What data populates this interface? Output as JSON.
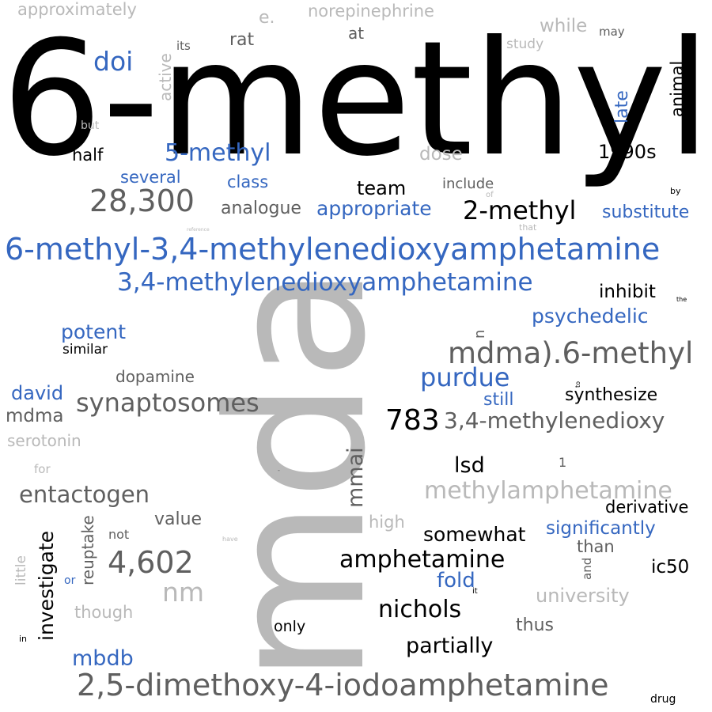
{
  "words": [
    {
      "id": "w1",
      "text": "6-methyl",
      "tone": "black"
    },
    {
      "id": "w2",
      "text": "mda",
      "tone": "light"
    },
    {
      "id": "w3",
      "text": "6-methyl-3,4-methylenedioxyamphetamine",
      "tone": "blue"
    },
    {
      "id": "w4",
      "text": "3,4-methylenedioxyamphetamine",
      "tone": "blue"
    },
    {
      "id": "w5",
      "text": "2,5-dimethoxy-4-iodoamphetamine",
      "tone": "gray"
    },
    {
      "id": "w6",
      "text": "mdma).6-methyl",
      "tone": "gray"
    },
    {
      "id": "w7",
      "text": "methylamphetamine",
      "tone": "light"
    },
    {
      "id": "w8",
      "text": "3,4-methylenedioxy",
      "tone": "gray"
    },
    {
      "id": "w9",
      "text": "synaptosomes",
      "tone": "gray"
    },
    {
      "id": "w10",
      "text": "28,300",
      "tone": "gray"
    },
    {
      "id": "w11",
      "text": "4,602",
      "tone": "gray"
    },
    {
      "id": "w12",
      "text": "2-methyl",
      "tone": "black"
    },
    {
      "id": "w13",
      "text": "5-methyl",
      "tone": "blue"
    },
    {
      "id": "w14",
      "text": "783",
      "tone": "black"
    },
    {
      "id": "w15",
      "text": "purdue",
      "tone": "blue"
    },
    {
      "id": "w16",
      "text": "entactogen",
      "tone": "gray"
    },
    {
      "id": "w17",
      "text": "doi",
      "tone": "blue"
    },
    {
      "id": "w18",
      "text": "nichols",
      "tone": "black"
    },
    {
      "id": "w19",
      "text": "amphetamine",
      "tone": "black"
    },
    {
      "id": "w20",
      "text": "nm",
      "tone": "light"
    },
    {
      "id": "w21",
      "text": "mmai",
      "tone": "gray"
    },
    {
      "id": "w22",
      "text": "lsd",
      "tone": "black"
    },
    {
      "id": "w23",
      "text": "mbdb",
      "tone": "blue"
    },
    {
      "id": "w24",
      "text": "partially",
      "tone": "black"
    },
    {
      "id": "w25",
      "text": "psychedelic",
      "tone": "blue"
    },
    {
      "id": "w26",
      "text": "potent",
      "tone": "blue"
    },
    {
      "id": "w27",
      "text": "appropriate",
      "tone": "blue"
    },
    {
      "id": "w28",
      "text": "investigate",
      "tone": "black"
    },
    {
      "id": "w29",
      "text": "somewhat",
      "tone": "black"
    },
    {
      "id": "w30",
      "text": "fold",
      "tone": "blue"
    },
    {
      "id": "w31",
      "text": "significantly",
      "tone": "blue"
    },
    {
      "id": "w32",
      "text": "university",
      "tone": "light"
    },
    {
      "id": "w33",
      "text": "synthesize",
      "tone": "black"
    },
    {
      "id": "w34",
      "text": "inhibit",
      "tone": "black"
    },
    {
      "id": "w35",
      "text": "team",
      "tone": "black"
    },
    {
      "id": "w36",
      "text": "substitute",
      "tone": "blue"
    },
    {
      "id": "w37",
      "text": "analogue",
      "tone": "gray"
    },
    {
      "id": "w38",
      "text": "1990s",
      "tone": "black"
    },
    {
      "id": "w39",
      "text": "david",
      "tone": "blue"
    },
    {
      "id": "w40",
      "text": "mdma",
      "tone": "gray"
    },
    {
      "id": "w41",
      "text": "value",
      "tone": "gray"
    },
    {
      "id": "w42",
      "text": "derivative",
      "tone": "black"
    },
    {
      "id": "w43",
      "text": "ic50",
      "tone": "black"
    },
    {
      "id": "w44",
      "text": "dose",
      "tone": "light"
    },
    {
      "id": "w45",
      "text": "still",
      "tone": "blue"
    },
    {
      "id": "w46",
      "text": "while",
      "tone": "light"
    },
    {
      "id": "w47",
      "text": "several",
      "tone": "blue"
    },
    {
      "id": "w48",
      "text": "class",
      "tone": "blue"
    },
    {
      "id": "w49",
      "text": "late",
      "tone": "blue"
    },
    {
      "id": "w50",
      "text": "animal",
      "tone": "black"
    },
    {
      "id": "w51",
      "text": "thus",
      "tone": "gray"
    },
    {
      "id": "w52",
      "text": "than",
      "tone": "gray"
    },
    {
      "id": "w53",
      "text": "dopamine",
      "tone": "gray"
    },
    {
      "id": "w54",
      "text": "reuptake",
      "tone": "gray"
    },
    {
      "id": "w55",
      "text": "high",
      "tone": "light"
    },
    {
      "id": "w56",
      "text": "though",
      "tone": "light"
    },
    {
      "id": "w57",
      "text": "serotonin",
      "tone": "light"
    },
    {
      "id": "w58",
      "text": "norepinephrine",
      "tone": "light"
    },
    {
      "id": "w59",
      "text": "approximately",
      "tone": "light"
    },
    {
      "id": "w60",
      "text": "half",
      "tone": "black"
    },
    {
      "id": "w61",
      "text": "rat",
      "tone": "gray"
    },
    {
      "id": "w62",
      "text": "e.",
      "tone": "light"
    },
    {
      "id": "w63",
      "text": "at",
      "tone": "gray"
    },
    {
      "id": "w64",
      "text": "active",
      "tone": "light"
    },
    {
      "id": "w65",
      "text": "similar",
      "tone": "black"
    },
    {
      "id": "w66",
      "text": "only",
      "tone": "black"
    },
    {
      "id": "w67",
      "text": "include",
      "tone": "gray"
    },
    {
      "id": "w68",
      "text": "study",
      "tone": "light"
    },
    {
      "id": "w69",
      "text": "may",
      "tone": "gray"
    },
    {
      "id": "w70",
      "text": "its",
      "tone": "gray"
    },
    {
      "id": "w71",
      "text": "little",
      "tone": "light"
    },
    {
      "id": "w72",
      "text": "not",
      "tone": "gray"
    },
    {
      "id": "w73",
      "text": "and",
      "tone": "gray"
    },
    {
      "id": "w74",
      "text": "n",
      "tone": "gray"
    },
    {
      "id": "w75",
      "text": "for",
      "tone": "light"
    },
    {
      "id": "w76",
      "text": "but",
      "tone": "light"
    },
    {
      "id": "w77",
      "text": "or",
      "tone": "blue"
    },
    {
      "id": "w78",
      "text": "drug",
      "tone": "black"
    },
    {
      "id": "w79",
      "text": "1",
      "tone": "gray"
    },
    {
      "id": "w80",
      "text": "by",
      "tone": "black"
    },
    {
      "id": "w81",
      "text": "of",
      "tone": "light"
    },
    {
      "id": "w82",
      "text": "that",
      "tone": "light"
    },
    {
      "id": "w83",
      "text": "in",
      "tone": "black"
    },
    {
      "id": "w84",
      "text": "it",
      "tone": "black"
    },
    {
      "id": "w85",
      "text": "the",
      "tone": "black"
    },
    {
      "id": "w86",
      "text": "have",
      "tone": "light"
    },
    {
      "id": "w87",
      "text": "reference",
      "tone": "light"
    },
    {
      "id": "w88",
      "text": "to",
      "tone": "black"
    },
    {
      "id": "w89",
      "text": "-",
      "tone": "gray"
    }
  ]
}
